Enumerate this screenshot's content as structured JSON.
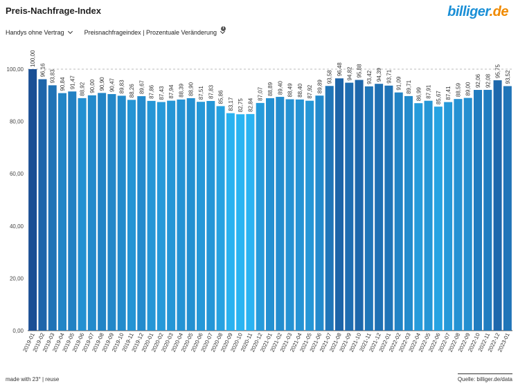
{
  "title": "Preis-Nachfrage-Index",
  "logo": {
    "text": "billiger",
    "suffix": ".de"
  },
  "controls": {
    "category": "Handys ohne Vertrag",
    "metric": "Preisnachfrageindex | Prozentuale Veränderung",
    "info": "i"
  },
  "footer": {
    "left": "made with 23° | reuse",
    "right": "Quelle: billiger.de/data"
  },
  "colors": {
    "low": "#2ab4f2",
    "high": "#1a4f95",
    "grid": "#cccccc",
    "reference_line": "#bbbbbb"
  },
  "chart_data": {
    "type": "bar",
    "title": "Preis-Nachfrage-Index",
    "xlabel": "",
    "ylabel": "",
    "ylim": [
      0,
      100
    ],
    "yticks": [
      "0,00",
      "20,00",
      "40,00",
      "60,00",
      "80,00",
      "100,00"
    ],
    "reference_value": 100,
    "categories": [
      "2019-01",
      "2019-02",
      "2019-03",
      "2019-04",
      "2019-05",
      "2019-06",
      "2019-07",
      "2019-08",
      "2019-09",
      "2019-10",
      "2019-11",
      "2019-12",
      "2020-01",
      "2020-02",
      "2020-03",
      "2020-04",
      "2020-05",
      "2020-06",
      "2020-07",
      "2020-08",
      "2020-09",
      "2020-10",
      "2020-11",
      "2020-12",
      "2021-01",
      "2021-02",
      "2021-03",
      "2021-04",
      "2021-05",
      "2021-06",
      "2021-07",
      "2021-08",
      "2021-09",
      "2021-10",
      "2021-11",
      "2021-12",
      "2022-01",
      "2022-02",
      "2022-03",
      "2022-04",
      "2022-05",
      "2022-06",
      "2022-07",
      "2022-08",
      "2022-09",
      "2022-10",
      "2022-11",
      "2022-12",
      "2023-01"
    ],
    "values": [
      100.0,
      96.16,
      93.83,
      90.84,
      91.47,
      88.92,
      90.0,
      90.9,
      90.47,
      89.83,
      88.26,
      89.67,
      87.86,
      87.43,
      87.94,
      88.39,
      88.9,
      87.51,
      87.83,
      85.86,
      83.17,
      82.75,
      82.84,
      87.07,
      88.89,
      89.4,
      88.49,
      88.4,
      87.92,
      89.89,
      93.58,
      96.48,
      94.82,
      95.88,
      93.42,
      94.39,
      93.71,
      91.09,
      89.71,
      86.99,
      87.91,
      85.67,
      87.41,
      88.59,
      89.0,
      92.06,
      92.08,
      95.75,
      93.52
    ],
    "labels": [
      "100,00",
      "96,16",
      "93,83",
      "90,84",
      "91,47",
      "88,92",
      "90,00",
      "90,90",
      "90,47",
      "89,83",
      "88,26",
      "89,67",
      "87,86",
      "87,43",
      "87,94",
      "88,39",
      "88,90",
      "87,51",
      "87,83",
      "85,86",
      "83,17",
      "82,75",
      "82,84",
      "87,07",
      "88,89",
      "89,40",
      "88,49",
      "88,40",
      "87,92",
      "89,89",
      "93,58",
      "96,48",
      "94,82",
      "95,88",
      "93,42",
      "94,39",
      "93,71",
      "91,09",
      "89,71",
      "86,99",
      "87,91",
      "85,67",
      "87,41",
      "88,59",
      "89,00",
      "92,06",
      "92,08",
      "95,75",
      "93,52"
    ]
  }
}
